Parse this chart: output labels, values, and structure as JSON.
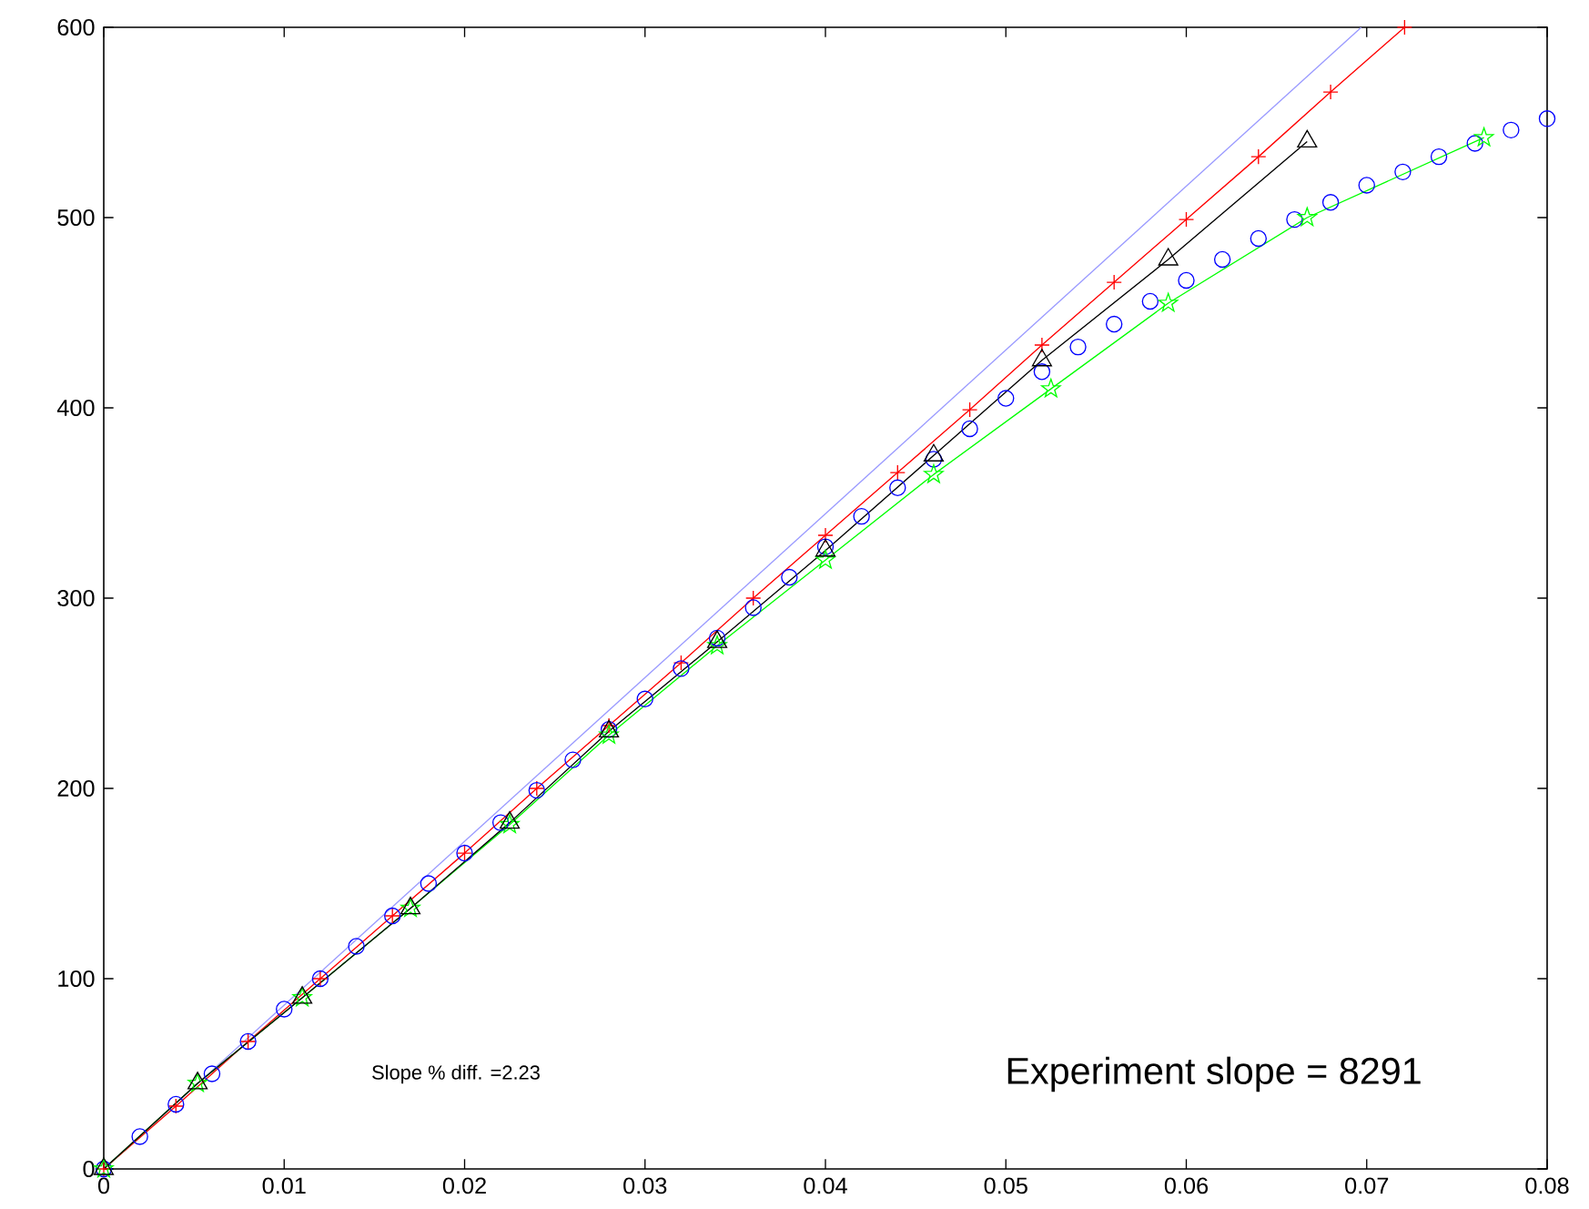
{
  "chart_data": {
    "type": "line",
    "xlim": [
      0,
      0.08
    ],
    "ylim": [
      0,
      600
    ],
    "xticks": [
      0,
      0.01,
      0.02,
      0.03,
      0.04,
      0.05,
      0.06,
      0.07,
      0.08
    ],
    "yticks": [
      0,
      100,
      200,
      300,
      400,
      500,
      600
    ],
    "grid": false,
    "legend": false,
    "annotations": [
      "Slope % diff. =2.23",
      "Experiment slope = 8291"
    ],
    "series": [
      {
        "color": "#9999ff",
        "marker": "none",
        "line_style": "solid",
        "x": [
          0,
          0.0697
        ],
        "values": [
          0,
          600
        ]
      },
      {
        "color": "#ff0000",
        "marker": "cross",
        "line_style": "solid",
        "x": [
          0,
          0.004,
          0.008,
          0.012,
          0.016,
          0.02,
          0.024,
          0.028,
          0.032,
          0.036,
          0.04,
          0.044,
          0.048,
          0.052,
          0.056,
          0.06,
          0.064,
          0.068,
          0.0721
        ],
        "values": [
          0,
          33,
          67,
          100,
          133,
          166,
          200,
          233,
          266,
          300,
          333,
          366,
          399,
          433,
          466,
          499,
          532,
          566,
          600
        ]
      },
      {
        "type": "scatter",
        "color": "#0000ff",
        "marker": "circle",
        "x": [
          0,
          0.002,
          0.004,
          0.006,
          0.008,
          0.01,
          0.012,
          0.014,
          0.016,
          0.018,
          0.02,
          0.022,
          0.024,
          0.026,
          0.028,
          0.03,
          0.032,
          0.034,
          0.036,
          0.038,
          0.04,
          0.042,
          0.044,
          0.046,
          0.048,
          0.05,
          0.052,
          0.054,
          0.056,
          0.058,
          0.06,
          0.062,
          0.064,
          0.066,
          0.068,
          0.07,
          0.072,
          0.074,
          0.076,
          0.078,
          0.08
        ],
        "values": [
          0,
          17,
          34,
          50,
          67,
          84,
          100,
          117,
          133,
          150,
          166,
          182,
          199,
          215,
          231,
          247,
          263,
          279,
          295,
          311,
          327,
          343,
          358,
          373,
          389,
          405,
          419,
          432,
          444,
          456,
          467,
          478,
          489,
          499,
          508,
          517,
          524,
          532,
          539,
          546,
          552
        ]
      },
      {
        "color": "#00ff00",
        "marker": "star",
        "line_style": "solid",
        "x": [
          0,
          0.0052,
          0.011,
          0.017,
          0.0225,
          0.028,
          0.034,
          0.04,
          0.046,
          0.0525,
          0.059,
          0.0667,
          0.0765
        ],
        "values": [
          0,
          45,
          90,
          137,
          181,
          228,
          275,
          320,
          365,
          410,
          455,
          500,
          542
        ]
      },
      {
        "color": "#000000",
        "marker": "triangle",
        "line_style": "solid",
        "x": [
          0,
          0.0052,
          0.011,
          0.017,
          0.0225,
          0.028,
          0.034,
          0.04,
          0.046,
          0.052,
          0.059,
          0.0667
        ],
        "values": [
          0,
          45,
          90,
          137,
          182,
          230,
          277,
          325,
          375,
          425,
          478,
          540
        ]
      }
    ]
  }
}
